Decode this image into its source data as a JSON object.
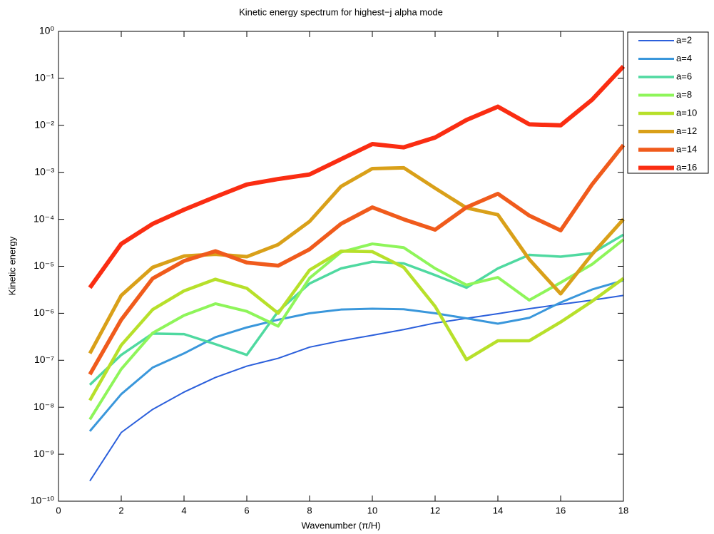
{
  "chart_data": {
    "type": "line",
    "title": "Kinetic energy spectrum for highest−j alpha mode",
    "x_label": "Wavenumber (π/H)",
    "y_label": "Kinetic energy",
    "log_y": true,
    "legend": "outside-top-right",
    "x": [
      1,
      2,
      3,
      4,
      5,
      6,
      7,
      8,
      9,
      10,
      11,
      12,
      13,
      14,
      15,
      16,
      17,
      18
    ],
    "xlim": [
      0,
      18
    ],
    "xticks": [
      0,
      2,
      4,
      6,
      8,
      10,
      12,
      14,
      16,
      18
    ],
    "ylim": [
      1e-10,
      1
    ],
    "yticks": [
      {
        "value": 1e-10,
        "label": "10⁻¹⁰"
      },
      {
        "value": 1e-09,
        "label": "10⁻⁹"
      },
      {
        "value": 1e-08,
        "label": "10⁻⁸"
      },
      {
        "value": 1e-07,
        "label": "10⁻⁷"
      },
      {
        "value": 1e-06,
        "label": "10⁻⁶"
      },
      {
        "value": 1e-05,
        "label": "10⁻⁵"
      },
      {
        "value": 0.0001,
        "label": "10⁻⁴"
      },
      {
        "value": 0.001,
        "label": "10⁻³"
      },
      {
        "value": 0.01,
        "label": "10⁻²"
      },
      {
        "value": 0.1,
        "label": "10⁻¹"
      },
      {
        "value": 1,
        "label": "10⁰"
      }
    ],
    "series": [
      {
        "name": "a=2",
        "color": "#2b5fdb",
        "width": 2,
        "values": [
          2.7e-10,
          2.9e-09,
          9e-09,
          2.1e-08,
          4.3e-08,
          7.5e-08,
          1.1e-07,
          1.9e-07,
          2.6e-07,
          3.4e-07,
          4.5e-07,
          6.2e-07,
          7.8e-07,
          9.8e-07,
          1.25e-06,
          1.55e-06,
          1.9e-06,
          2.4e-06
        ]
      },
      {
        "name": "a=4",
        "color": "#3a97db",
        "width": 3,
        "values": [
          3.1e-09,
          1.9e-08,
          7e-08,
          1.4e-07,
          3.1e-07,
          5e-07,
          7.3e-07,
          1e-06,
          1.2e-06,
          1.25e-06,
          1.22e-06,
          1e-06,
          7.8e-07,
          6e-07,
          8e-07,
          1.7e-06,
          3.2e-06,
          5e-06
        ]
      },
      {
        "name": "a=6",
        "color": "#4fd9a0",
        "width": 3.5,
        "values": [
          3e-08,
          1.3e-07,
          3.7e-07,
          3.6e-07,
          2.2e-07,
          1.3e-07,
          1.1e-06,
          4.3e-06,
          9e-06,
          1.25e-05,
          1.15e-05,
          6.5e-06,
          3.5e-06,
          9e-06,
          1.75e-05,
          1.6e-05,
          1.9e-05,
          4.7e-05
        ]
      },
      {
        "name": "a=8",
        "color": "#8ef55a",
        "width": 4,
        "values": [
          5.5e-09,
          6.5e-08,
          3.8e-07,
          9e-07,
          1.6e-06,
          1.1e-06,
          5.3e-07,
          5.6e-06,
          2e-05,
          3e-05,
          2.5e-05,
          9e-06,
          4e-06,
          5.8e-06,
          1.9e-06,
          4.5e-06,
          1.1e-05,
          3.7e-05
        ]
      },
      {
        "name": "a=10",
        "color": "#b7e02a",
        "width": 4.5,
        "values": [
          1.4e-08,
          2.1e-07,
          1.2e-06,
          3e-06,
          5.3e-06,
          3.4e-06,
          1e-06,
          8.3e-06,
          2.1e-05,
          2.05e-05,
          9.5e-06,
          1.4e-06,
          1.03e-07,
          2.6e-07,
          2.6e-07,
          6.5e-07,
          1.8e-06,
          5.5e-06
        ]
      },
      {
        "name": "a=12",
        "color": "#d9a019",
        "width": 5,
        "values": [
          1.4e-07,
          2.4e-06,
          9.5e-06,
          1.65e-05,
          1.8e-05,
          1.6e-05,
          2.9e-05,
          9e-05,
          0.0005,
          0.0012,
          0.00125,
          0.00046,
          0.000175,
          0.000125,
          1.4e-05,
          2.6e-06,
          1.8e-05,
          0.0001
        ]
      },
      {
        "name": "a=14",
        "color": "#f05b1c",
        "width": 5.5,
        "values": [
          5e-08,
          7.3e-07,
          5.5e-06,
          1.3e-05,
          2.1e-05,
          1.2e-05,
          1.03e-05,
          2.3e-05,
          8e-05,
          0.00018,
          0.0001,
          6e-05,
          0.00018,
          0.00035,
          0.00012,
          5.8e-05,
          0.00055,
          0.0038
        ]
      },
      {
        "name": "a=16",
        "color": "#fa2d12",
        "width": 6,
        "values": [
          3.5e-06,
          3e-05,
          8e-05,
          0.00016,
          0.0003,
          0.00055,
          0.00072,
          0.0009,
          0.0019,
          0.004,
          0.0034,
          0.0055,
          0.013,
          0.025,
          0.0105,
          0.01,
          0.035,
          0.18
        ]
      }
    ]
  }
}
